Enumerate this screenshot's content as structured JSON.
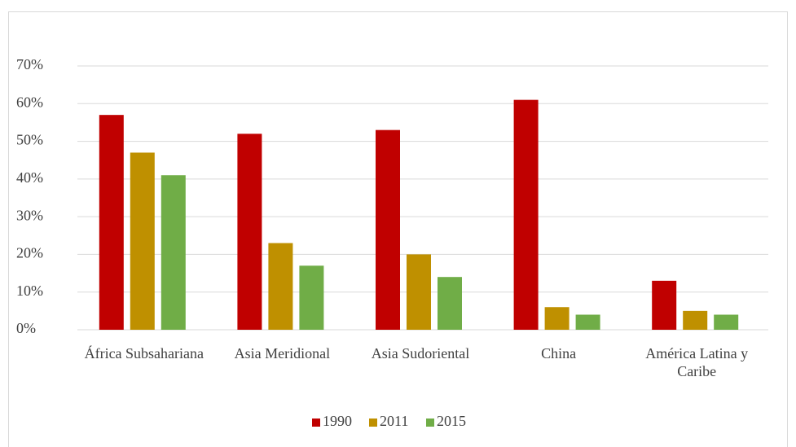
{
  "chart_data": {
    "type": "bar",
    "categories": [
      "África Subsahariana",
      "Asia Meridional",
      "Asia Sudoriental",
      "China",
      "América Latina y Caribe"
    ],
    "series": [
      {
        "name": "1990",
        "color": "#c00000",
        "values": [
          57,
          52,
          53,
          61,
          13
        ]
      },
      {
        "name": "2011",
        "color": "#bf9000",
        "values": [
          47,
          23,
          20,
          6,
          5
        ]
      },
      {
        "name": "2015",
        "color": "#70ad47",
        "values": [
          41,
          17,
          14,
          4,
          4
        ]
      }
    ],
    "ylim": [
      0,
      70
    ],
    "yticks": [
      {
        "value": 0,
        "label": "0%"
      },
      {
        "value": 10,
        "label": "10%"
      },
      {
        "value": 20,
        "label": "20%"
      },
      {
        "value": 30,
        "label": "30%"
      },
      {
        "value": 40,
        "label": "40%"
      },
      {
        "value": 50,
        "label": "50%"
      },
      {
        "value": 60,
        "label": "60%"
      },
      {
        "value": 70,
        "label": "70%"
      }
    ],
    "grid": true,
    "legend": "bottom"
  }
}
